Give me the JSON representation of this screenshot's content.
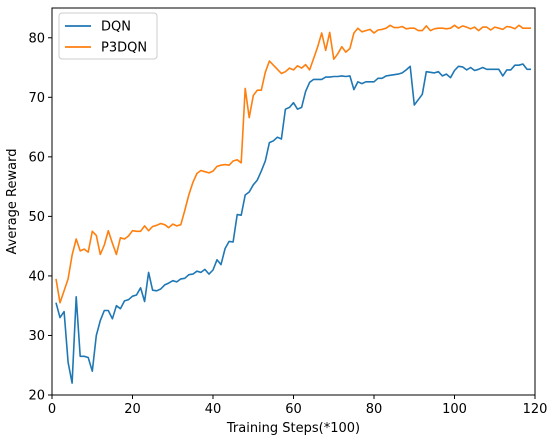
{
  "chart_data": {
    "type": "line",
    "title": "",
    "xlabel": "Training Steps(*100)",
    "ylabel": "Average Reward",
    "xlim": [
      0,
      120
    ],
    "ylim": [
      20,
      85
    ],
    "xticks": [
      0,
      20,
      40,
      60,
      80,
      100,
      120
    ],
    "yticks": [
      20,
      30,
      40,
      50,
      60,
      70,
      80
    ],
    "grid": false,
    "legend_position": "top-left",
    "series": [
      {
        "name": "DQN",
        "color": "#1f77b4",
        "x": [
          1,
          2,
          3,
          4,
          5,
          6,
          7,
          8,
          9,
          10,
          11,
          12,
          13,
          14,
          15,
          16,
          17,
          18,
          19,
          20,
          21,
          22,
          23,
          24,
          25,
          26,
          27,
          28,
          29,
          30,
          31,
          32,
          33,
          34,
          35,
          36,
          37,
          38,
          39,
          40,
          41,
          42,
          43,
          44,
          45,
          46,
          47,
          48,
          49,
          50,
          51,
          52,
          53,
          54,
          55,
          56,
          57,
          58,
          59,
          60,
          61,
          62,
          63,
          64,
          65,
          66,
          67,
          68,
          69,
          70,
          71,
          72,
          73,
          74,
          75,
          76,
          77,
          78,
          79,
          80,
          81,
          82,
          83,
          84,
          85,
          86,
          87,
          88,
          89,
          90,
          91,
          92,
          93,
          94,
          95,
          96,
          97,
          98,
          99,
          100,
          101,
          102,
          103,
          104,
          105,
          106,
          107,
          108,
          109,
          110,
          111,
          112,
          113,
          114,
          115,
          116,
          117,
          118,
          119
        ],
        "y": [
          35.5,
          33,
          34,
          25.5,
          22,
          36.5,
          26.5,
          26.5,
          26.3,
          24,
          30,
          32.5,
          34.2,
          34.2,
          32.8,
          35,
          34.5,
          35.8,
          36,
          36.6,
          36.8,
          38,
          35.7,
          40.6,
          37.6,
          37.5,
          37.8,
          38.5,
          38.8,
          39.2,
          39,
          39.5,
          39.6,
          40.2,
          40.3,
          40.8,
          40.6,
          41.1,
          40.3,
          41,
          42.7,
          41.9,
          44.6,
          45.8,
          45.7,
          50.3,
          50.2,
          53.6,
          54.1,
          55.3,
          56.1,
          57.6,
          59.3,
          62.4,
          62.7,
          63.3,
          63,
          68,
          68.3,
          69.1,
          68,
          68.3,
          71,
          72.5,
          73,
          73,
          73,
          73.4,
          73.4,
          73.5,
          73.5,
          73.6,
          73.5,
          73.6,
          71.3,
          72.6,
          72.3,
          72.6,
          72.6,
          72.6,
          73.2,
          73.2,
          73.6,
          73.7,
          73.8,
          73.9,
          74.1,
          74.6,
          75.2,
          68.7,
          69.6,
          70.5,
          74.3,
          74.2,
          74.1,
          74.3,
          73.6,
          73.9,
          73.3,
          74.5,
          75.2,
          75.1,
          74.6,
          75,
          74.5,
          74.7,
          75,
          74.7,
          74.7,
          74.7,
          74.7,
          73.6,
          74.6,
          74.6,
          75.4,
          75.4,
          75.6,
          74.7,
          74.7
        ]
      },
      {
        "name": "P3DQN",
        "color": "#ff7f0e",
        "x": [
          1,
          2,
          3,
          4,
          5,
          6,
          7,
          8,
          9,
          10,
          11,
          12,
          13,
          14,
          15,
          16,
          17,
          18,
          19,
          20,
          21,
          22,
          23,
          24,
          25,
          26,
          27,
          28,
          29,
          30,
          31,
          32,
          33,
          34,
          35,
          36,
          37,
          38,
          39,
          40,
          41,
          42,
          43,
          44,
          45,
          46,
          47,
          48,
          49,
          50,
          51,
          52,
          53,
          54,
          55,
          56,
          57,
          58,
          59,
          60,
          61,
          62,
          63,
          64,
          65,
          66,
          67,
          68,
          69,
          70,
          71,
          72,
          73,
          74,
          75,
          76,
          77,
          78,
          79,
          80,
          81,
          82,
          83,
          84,
          85,
          86,
          87,
          88,
          89,
          90,
          91,
          92,
          93,
          94,
          95,
          96,
          97,
          98,
          99,
          100,
          101,
          102,
          103,
          104,
          105,
          106,
          107,
          108,
          109,
          110,
          111,
          112,
          113,
          114,
          115,
          116,
          117,
          118,
          119
        ],
        "y": [
          39.5,
          35.5,
          37.5,
          39.5,
          43.5,
          46.2,
          44.2,
          44.5,
          44,
          47.5,
          46.8,
          43.6,
          45.2,
          47.6,
          45.5,
          43.6,
          46.4,
          46.2,
          46.7,
          47.6,
          47.5,
          47.5,
          48.4,
          47.6,
          48.3,
          48.5,
          48.8,
          48.6,
          48.1,
          48.7,
          48.4,
          48.6,
          51,
          53.6,
          55.7,
          57.2,
          57.7,
          57.5,
          57.3,
          57.6,
          58.4,
          58.6,
          58.7,
          58.6,
          59.3,
          59.5,
          59,
          71.5,
          66.6,
          70.3,
          71.2,
          71.2,
          74.2,
          76.1,
          75.4,
          74.7,
          74,
          74.3,
          74.9,
          74.6,
          75.3,
          74.9,
          75.5,
          74.6,
          76.5,
          78.5,
          80.8,
          77.9,
          80.9,
          76.4,
          77.3,
          78.5,
          77.6,
          78.2,
          80.8,
          81.6,
          81,
          81.2,
          81.4,
          80.8,
          81.3,
          81.4,
          81.6,
          82.1,
          81.7,
          81.7,
          81.9,
          81.5,
          81.6,
          81.6,
          81.2,
          81.2,
          82,
          81.2,
          81.5,
          81.6,
          81.6,
          81.5,
          81.6,
          82.1,
          81.6,
          82,
          81.8,
          81.5,
          81.8,
          81.2,
          81.8,
          81.8,
          81.3,
          81.8,
          81.6,
          81.4,
          81.9,
          81.8,
          81.5,
          82.1,
          81.6,
          81.6,
          81.6
        ]
      }
    ]
  }
}
